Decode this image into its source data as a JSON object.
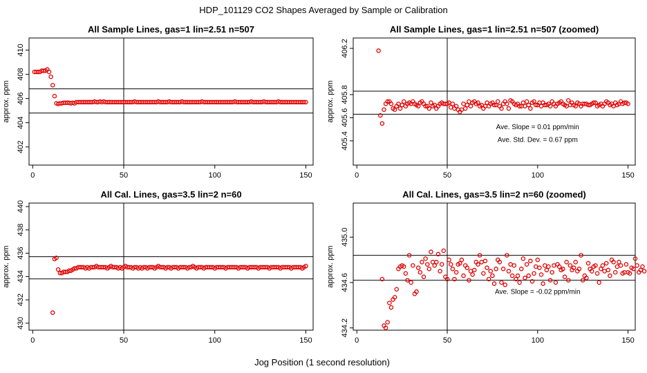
{
  "figure": {
    "title": "HDP_101129  CO2 Shapes Averaged by Sample or Calibration",
    "xlabel": "Jog Position (1 second resolution)"
  },
  "colors": {
    "points": "#e00000",
    "lines": "#000000",
    "frame": "#000000"
  },
  "chart_data": [
    {
      "type": "scatter",
      "title": "All Sample Lines, gas=1 lin=2.51 n=507",
      "xlabel": "",
      "ylabel": "approx. ppm",
      "xlim": [
        -2,
        154
      ],
      "ylim": [
        400.5,
        411
      ],
      "xticks": [
        0,
        50,
        100,
        150
      ],
      "yticks": [
        402,
        404,
        406,
        408,
        410
      ],
      "vline": 50,
      "hlines": [
        404.8,
        406.8
      ],
      "annotations": [],
      "series": [
        {
          "x_start": 1,
          "y": [
            408.2,
            408.2,
            408.2,
            408.2,
            408.3,
            408.3,
            408.3,
            408.4,
            408.2,
            407.8,
            407.1,
            406.2,
            405.6,
            405.55,
            405.6,
            405.6,
            405.65,
            405.65,
            405.65,
            405.65,
            405.6,
            405.65,
            405.6,
            405.7,
            405.7,
            405.7,
            405.7,
            405.7,
            405.7,
            405.7,
            405.7,
            405.7,
            405.7,
            405.75,
            405.7,
            405.7,
            405.75,
            405.7,
            405.75,
            405.7,
            405.7,
            405.7,
            405.7,
            405.7,
            405.7,
            405.7,
            405.7,
            405.7,
            405.7,
            405.7,
            405.7,
            405.7,
            405.7,
            405.7,
            405.7,
            405.75,
            405.7,
            405.7,
            405.7,
            405.7,
            405.7,
            405.7,
            405.7,
            405.7,
            405.7,
            405.7,
            405.7,
            405.7,
            405.75,
            405.7,
            405.7,
            405.7,
            405.7,
            405.7,
            405.75,
            405.7,
            405.7,
            405.7,
            405.7,
            405.7,
            405.7,
            405.75,
            405.7,
            405.7,
            405.7,
            405.7,
            405.7,
            405.7,
            405.7,
            405.7,
            405.7,
            405.7,
            405.75,
            405.7,
            405.7,
            405.7,
            405.7,
            405.7,
            405.7,
            405.7,
            405.7,
            405.7,
            405.7,
            405.7,
            405.7,
            405.7,
            405.7,
            405.7,
            405.7,
            405.7,
            405.75,
            405.7,
            405.7,
            405.7,
            405.7,
            405.7,
            405.7,
            405.7,
            405.7,
            405.75,
            405.7,
            405.7,
            405.7,
            405.7,
            405.7,
            405.7,
            405.75,
            405.7,
            405.7,
            405.7,
            405.7,
            405.7,
            405.7,
            405.7,
            405.75,
            405.7,
            405.7,
            405.7,
            405.7,
            405.7,
            405.7,
            405.7,
            405.7,
            405.7,
            405.7,
            405.7,
            405.7,
            405.7,
            405.7,
            405.7
          ]
        }
      ]
    },
    {
      "type": "scatter",
      "title": "All Sample Lines, gas=1 lin=2.51 n=507 (zoomed)",
      "xlabel": "",
      "ylabel": "approx. ppm",
      "xlim": [
        -2,
        154
      ],
      "ylim": [
        405.19,
        406.29
      ],
      "xticks": [
        0,
        50,
        100,
        150
      ],
      "yticks": [
        405.4,
        405.6,
        405.8,
        406.2
      ],
      "vline": 50,
      "hlines": [
        405.63,
        405.83
      ],
      "annotations": [
        {
          "text": "Ave. Slope =  0.01  ppm/min",
          "x": 100,
          "y": 405.5
        },
        {
          "text": "Ave. Std. Dev. =  0.67  ppm",
          "x": 100,
          "y": 405.39
        }
      ],
      "series": [
        {
          "x_start": 12,
          "y": [
            406.18,
            405.62,
            405.55,
            405.67,
            405.72,
            405.74,
            405.74,
            405.72,
            405.68,
            405.67,
            405.7,
            405.72,
            405.68,
            405.71,
            405.74,
            405.7,
            405.72,
            405.73,
            405.72,
            405.74,
            405.72,
            405.71,
            405.7,
            405.73,
            405.74,
            405.72,
            405.7,
            405.7,
            405.68,
            405.73,
            405.7,
            405.71,
            405.68,
            405.7,
            405.72,
            405.73,
            405.72,
            405.72,
            405.72,
            405.73,
            405.69,
            405.72,
            405.68,
            405.7,
            405.67,
            405.65,
            405.67,
            405.72,
            405.68,
            405.71,
            405.74,
            405.7,
            405.73,
            405.74,
            405.72,
            405.73,
            405.7,
            405.71,
            405.68,
            405.7,
            405.73,
            405.7,
            405.72,
            405.73,
            405.71,
            405.71,
            405.74,
            405.7,
            405.68,
            405.72,
            405.74,
            405.72,
            405.68,
            405.75,
            405.74,
            405.72,
            405.71,
            405.72,
            405.7,
            405.7,
            405.73,
            405.7,
            405.74,
            405.71,
            405.68,
            405.73,
            405.74,
            405.71,
            405.71,
            405.73,
            405.7,
            405.73,
            405.71,
            405.71,
            405.72,
            405.7,
            405.74,
            405.72,
            405.7,
            405.72,
            405.73,
            405.74,
            405.72,
            405.71,
            405.7,
            405.75,
            405.71,
            405.73,
            405.71,
            405.7,
            405.73,
            405.72,
            405.7,
            405.72,
            405.72,
            405.72,
            405.71,
            405.71,
            405.72,
            405.73,
            405.73,
            405.7,
            405.71,
            405.72,
            405.7,
            405.72,
            405.74,
            405.73,
            405.71,
            405.72,
            405.7,
            405.73,
            405.71,
            405.72,
            405.74,
            405.72,
            405.73,
            405.73,
            405.72
          ]
        }
      ]
    },
    {
      "type": "scatter",
      "title": "All Cal. Lines, gas=3.5 lin=2 n=60",
      "xlabel": "",
      "ylabel": "approx. ppm",
      "xlim": [
        -2,
        154
      ],
      "ylim": [
        429.4,
        440.3
      ],
      "xticks": [
        0,
        50,
        100,
        150
      ],
      "yticks": [
        430,
        432,
        434,
        436,
        438,
        440
      ],
      "vline": 50,
      "hlines": [
        433.8,
        435.7
      ],
      "annotations": [],
      "series": [
        {
          "x_start": 11,
          "y": [
            430.9,
            435.5,
            435.6,
            434.6,
            434.3,
            434.3,
            434.4,
            434.4,
            434.4,
            434.5,
            434.5,
            434.6,
            434.7,
            434.7,
            434.8,
            434.8,
            434.8,
            434.8,
            434.7,
            434.8,
            434.7,
            434.8,
            434.8,
            434.8,
            434.9,
            434.8,
            434.8,
            434.8,
            434.8,
            434.8,
            434.7,
            434.8,
            434.9,
            434.8,
            434.8,
            434.8,
            434.7,
            434.8,
            434.7,
            434.8,
            434.9,
            434.8,
            434.8,
            434.8,
            434.7,
            434.8,
            434.8,
            434.7,
            434.8,
            434.7,
            434.8,
            434.8,
            434.7,
            434.8,
            434.8,
            434.8,
            434.7,
            434.8,
            434.9,
            434.8,
            434.8,
            434.8,
            434.7,
            434.8,
            434.8,
            434.7,
            434.8,
            434.8,
            434.8,
            434.7,
            434.8,
            434.8,
            434.8,
            434.8,
            434.7,
            434.8,
            434.8,
            434.9,
            434.8,
            434.7,
            434.8,
            434.8,
            434.8,
            434.7,
            434.8,
            434.8,
            434.8,
            434.8,
            434.8,
            434.7,
            434.8,
            434.8,
            434.8,
            434.8,
            434.8,
            434.7,
            434.8,
            434.8,
            434.8,
            434.8,
            434.8,
            434.8,
            434.7,
            434.8,
            434.8,
            434.8,
            434.8,
            434.7,
            434.8,
            434.8,
            434.8,
            434.8,
            434.8,
            434.7,
            434.8,
            434.8,
            434.8,
            434.8,
            434.8,
            434.7,
            434.8,
            434.8,
            434.8,
            434.8,
            434.8,
            434.7,
            434.8,
            434.8,
            434.8,
            434.8,
            434.8,
            434.7,
            434.8,
            434.8,
            434.8,
            434.8,
            434.8,
            434.7,
            434.8,
            434.9
          ]
        }
      ]
    },
    {
      "type": "scatter",
      "title": "All Cal. Lines, gas=3.5 lin=2 n=60 (zoomed)",
      "xlabel": "",
      "ylabel": "approx. ppm",
      "xlim": [
        -2,
        154
      ],
      "ylim": [
        434.18,
        435.3
      ],
      "xticks": [
        0,
        50,
        100,
        150
      ],
      "yticks": [
        434.2,
        434.6,
        435.0
      ],
      "vline": 50,
      "hlines": [
        434.62,
        434.84
      ],
      "annotations": [
        {
          "text": "Ave. Slope =  -0.02  ppm/min",
          "x": 100,
          "y": 434.5
        }
      ],
      "series": [
        {
          "x_start": 14,
          "y": [
            434.63,
            434.22,
            434.2,
            434.25,
            434.42,
            434.38,
            434.45,
            434.47,
            434.54,
            434.72,
            434.74,
            434.75,
            434.74,
            434.68,
            434.62,
            434.84,
            434.6,
            434.75,
            434.5,
            434.52,
            434.73,
            434.69,
            434.78,
            434.65,
            434.81,
            434.76,
            434.72,
            434.87,
            434.78,
            434.75,
            434.78,
            434.85,
            434.7,
            434.76,
            434.88,
            434.65,
            434.63,
            434.8,
            434.76,
            434.72,
            434.63,
            434.69,
            434.76,
            434.77,
            434.8,
            434.66,
            434.75,
            434.73,
            434.62,
            434.7,
            434.67,
            434.71,
            434.78,
            434.76,
            434.84,
            434.78,
            434.68,
            434.79,
            434.73,
            434.63,
            434.7,
            434.66,
            434.59,
            434.72,
            434.8,
            434.78,
            434.6,
            434.72,
            434.58,
            434.84,
            434.7,
            434.76,
            434.66,
            434.75,
            434.63,
            434.66,
            434.6,
            434.72,
            434.81,
            434.64,
            434.76,
            434.66,
            434.79,
            434.61,
            434.68,
            434.74,
            434.8,
            434.73,
            434.67,
            434.59,
            434.75,
            434.71,
            434.74,
            434.62,
            434.69,
            434.75,
            434.6,
            434.76,
            434.74,
            434.71,
            434.72,
            434.65,
            434.78,
            434.62,
            434.75,
            434.71,
            434.73,
            434.78,
            434.7,
            434.72,
            434.84,
            434.62,
            434.66,
            434.64,
            434.77,
            434.72,
            434.7,
            434.74,
            434.75,
            434.68,
            434.6,
            434.72,
            434.75,
            434.7,
            434.77,
            434.71,
            434.66,
            434.8,
            434.78,
            434.69,
            434.74,
            434.78,
            434.75,
            434.68,
            434.69,
            434.76,
            434.69,
            434.68,
            434.73,
            434.72,
            434.81,
            434.75,
            434.69,
            434.71,
            434.74,
            434.7
          ]
        }
      ]
    }
  ]
}
